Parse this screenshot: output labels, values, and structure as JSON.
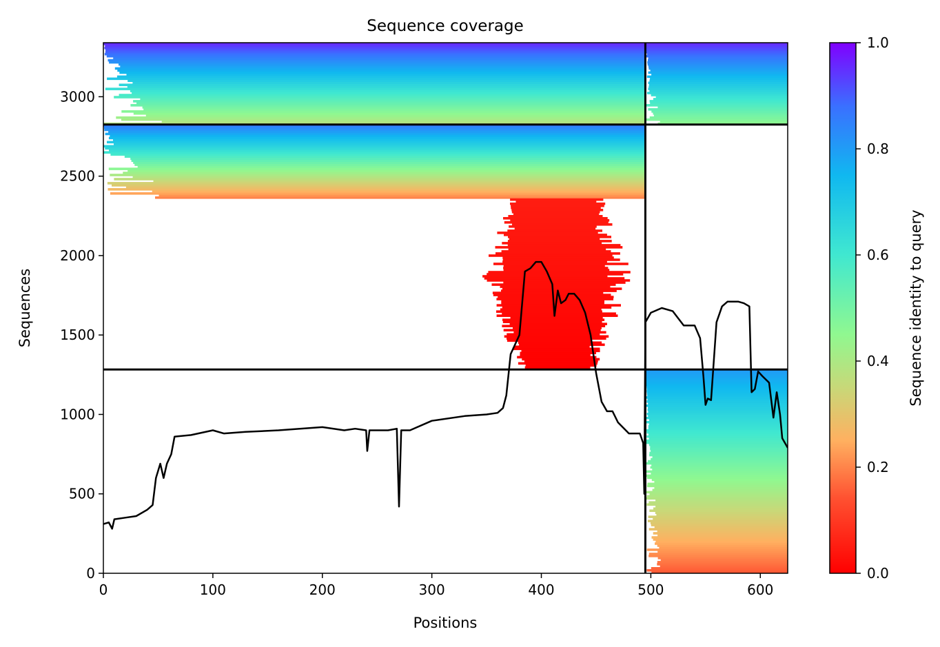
{
  "chart_data": {
    "type": "heatmap",
    "title": "Sequence coverage",
    "xlabel": "Positions",
    "ylabel": "Sequences",
    "xlim": [
      0,
      625
    ],
    "ylim": [
      0,
      3340
    ],
    "x_ticks": [
      0,
      100,
      200,
      300,
      400,
      500,
      600
    ],
    "y_ticks": [
      0,
      500,
      1000,
      1500,
      2000,
      2500,
      3000
    ],
    "grid": false,
    "colorbar": {
      "label": "Sequence identity to query",
      "min": 0.0,
      "max": 1.0,
      "ticks": [
        "0.0",
        "0.2",
        "0.4",
        "0.6",
        "0.8",
        "1.0"
      ],
      "colormap": "rainbow_r",
      "colors": [
        "#ff0000",
        "#ff8040",
        "#c0e060",
        "#80ff80",
        "#40e0d0",
        "#00b0f0",
        "#4060ff",
        "#8000ff"
      ]
    },
    "chain_boundary_x": 495,
    "group_boundaries_y": [
      1283,
      2825
    ],
    "blocks": [
      {
        "name": "chain1-group3",
        "x": [
          0,
          495
        ],
        "y": [
          2825,
          3340
        ],
        "identity_range": [
          0.38,
          0.95
        ]
      },
      {
        "name": "chain2-group3",
        "x": [
          495,
          625
        ],
        "y": [
          2825,
          3340
        ],
        "identity_range": [
          0.45,
          0.95
        ]
      },
      {
        "name": "chain1-group2-aligned",
        "x": [
          0,
          495
        ],
        "y": [
          2360,
          2825
        ],
        "identity_range": [
          0.2,
          0.85
        ]
      },
      {
        "name": "chain1-group2-partial",
        "x": [
          360,
          465
        ],
        "y": [
          1290,
          2360
        ],
        "identity_range": [
          0.0,
          0.05
        ]
      },
      {
        "name": "chain2-group1",
        "x": [
          495,
          625
        ],
        "y": [
          0,
          1283
        ],
        "identity_range": [
          0.15,
          0.8
        ]
      }
    ],
    "line": {
      "name": "coverage",
      "x": [
        0,
        5,
        8,
        10,
        20,
        30,
        40,
        45,
        48,
        52,
        55,
        58,
        62,
        65,
        80,
        100,
        110,
        130,
        160,
        200,
        220,
        230,
        240,
        241,
        243,
        260,
        268,
        270,
        272,
        280,
        300,
        330,
        350,
        360,
        365,
        368,
        372,
        380,
        385,
        390,
        395,
        400,
        405,
        410,
        412,
        415,
        418,
        422,
        425,
        430,
        435,
        440,
        445,
        450,
        455,
        460,
        465,
        470,
        480,
        490,
        493,
        494,
        495,
        500,
        510,
        520,
        530,
        540,
        545,
        548,
        550,
        552,
        555,
        560,
        565,
        570,
        575,
        580,
        585,
        590,
        592,
        595,
        598,
        602,
        608,
        612,
        615,
        618,
        620,
        625
      ],
      "y": [
        310,
        320,
        280,
        340,
        350,
        360,
        400,
        430,
        600,
        690,
        600,
        690,
        750,
        860,
        870,
        900,
        880,
        890,
        900,
        920,
        900,
        910,
        900,
        770,
        900,
        900,
        910,
        420,
        900,
        900,
        960,
        990,
        1000,
        1010,
        1040,
        1120,
        1380,
        1500,
        1900,
        1920,
        1960,
        1960,
        1900,
        1820,
        1620,
        1780,
        1700,
        1720,
        1760,
        1760,
        1720,
        1640,
        1500,
        1260,
        1080,
        1020,
        1020,
        950,
        880,
        880,
        820,
        500,
        1580,
        1640,
        1670,
        1650,
        1560,
        1560,
        1480,
        1240,
        1060,
        1100,
        1090,
        1580,
        1680,
        1710,
        1710,
        1710,
        1700,
        1680,
        1140,
        1160,
        1270,
        1240,
        1200,
        980,
        1140,
        1000,
        850,
        790
      ]
    }
  }
}
